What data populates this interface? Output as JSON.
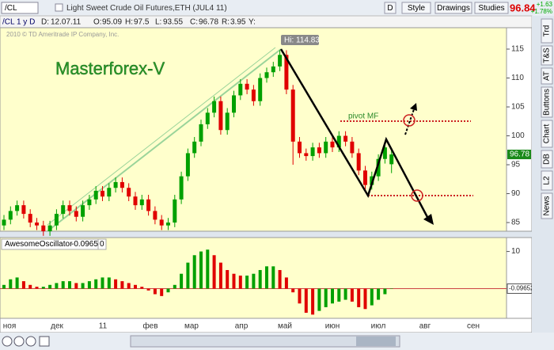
{
  "toolbar": {
    "symbol": "/CL",
    "description": "Light Sweet Crude Oil Futures,ETH (JUL4 11)",
    "buttons": [
      "D",
      "Style",
      "Drawings",
      "Studies"
    ],
    "last": "96.84",
    "change": "+1.63",
    "change_pct": "+1.78%"
  },
  "info_bar": {
    "symbol": "/CL 1 y D",
    "date_label": "D:",
    "date": "12.07.11",
    "open_label": "O:",
    "high_label": "H:",
    "low_label": "L:",
    "close_label": "C:",
    "range_label": "R:",
    "range": 3.95,
    "y_label": "Y:"
  },
  "copyright": "2010 © TD Ameritrade IP Company, Inc.",
  "watermark": "Masterforex-V",
  "pivot_label": "pivot MF",
  "hi_label": "Hi:",
  "sidebar": [
    "Trd",
    "T&S",
    "AT",
    "Buttons",
    "Chart",
    "DB",
    "L2",
    "News"
  ],
  "x_labels": [
    "ноя",
    "дек",
    "11",
    "фев",
    "мар",
    "апр",
    "май",
    "июн",
    "июл",
    "авг",
    "сен"
  ],
  "chart_data": [
    {
      "type": "candlestick",
      "up_color": "#00a000",
      "down_color": "#e00000",
      "ylim": [
        83.5,
        118.7
      ],
      "yticks": [
        85,
        90,
        95,
        100,
        105,
        110,
        115
      ],
      "candles": [
        [
          84.5,
          86.3,
          83.7,
          85.5
        ],
        [
          85.5,
          87.8,
          84.7,
          87
        ],
        [
          87,
          88.8,
          86.2,
          88
        ],
        [
          88,
          88.8,
          85.7,
          86.5
        ],
        [
          86.5,
          87.3,
          84.2,
          85
        ],
        [
          85,
          85.8,
          83.7,
          84.5
        ],
        [
          84.5,
          85.3,
          82.7,
          83.5
        ],
        [
          83.5,
          85.3,
          82.7,
          84.5
        ],
        [
          84.5,
          87.3,
          83.7,
          86.5
        ],
        [
          86.5,
          88.8,
          85.7,
          88
        ],
        [
          88,
          88.8,
          86.2,
          87
        ],
        [
          87,
          87.8,
          85.2,
          86
        ],
        [
          86,
          88.8,
          85.2,
          88
        ],
        [
          88,
          89.8,
          87.2,
          89
        ],
        [
          89,
          91.3,
          88.2,
          90.5
        ],
        [
          90.5,
          91.3,
          88.7,
          89.5
        ],
        [
          89.5,
          91.8,
          88.7,
          91
        ],
        [
          91,
          92.8,
          90.2,
          92
        ],
        [
          92,
          92.8,
          90.2,
          91
        ],
        [
          91,
          91.8,
          88.7,
          89.5
        ],
        [
          89.5,
          90.3,
          87.2,
          88
        ],
        [
          88,
          89.8,
          87.2,
          89
        ],
        [
          89,
          89.8,
          86.2,
          87
        ],
        [
          87,
          87.8,
          84.7,
          85.5
        ],
        [
          85.5,
          86.3,
          83.7,
          84.5
        ],
        [
          84.5,
          85.8,
          83.7,
          85
        ],
        [
          85,
          89.8,
          84.2,
          89
        ],
        [
          89,
          93.8,
          88.2,
          93
        ],
        [
          93,
          97.8,
          92.2,
          97
        ],
        [
          97,
          99.8,
          96.2,
          99
        ],
        [
          99,
          102.8,
          98.2,
          102
        ],
        [
          102,
          104.8,
          101.2,
          104
        ],
        [
          104,
          106.8,
          103.2,
          106
        ],
        [
          106,
          106.8,
          100.2,
          101
        ],
        [
          101,
          104.8,
          100.2,
          104
        ],
        [
          104,
          107.8,
          103.2,
          107
        ],
        [
          107,
          109.8,
          106.2,
          109
        ],
        [
          109,
          109.8,
          107.2,
          108
        ],
        [
          108,
          108.8,
          105.2,
          106
        ],
        [
          106,
          110.8,
          105.2,
          110
        ],
        [
          110,
          111.8,
          109.2,
          111
        ],
        [
          111,
          112.8,
          110.2,
          112
        ],
        [
          112,
          114.83,
          111.2,
          114
        ],
        [
          114,
          114.8,
          107.2,
          108
        ],
        [
          108,
          108.8,
          95,
          99
        ],
        [
          99,
          99.8,
          96.2,
          97
        ],
        [
          97,
          97.8,
          95.7,
          96.5
        ],
        [
          96.5,
          98.8,
          95.7,
          98
        ],
        [
          98,
          98.8,
          96.2,
          97
        ],
        [
          97,
          99.8,
          96.2,
          99
        ],
        [
          99,
          99.8,
          97.2,
          98
        ],
        [
          98,
          100.8,
          97.2,
          100
        ],
        [
          100,
          100.8,
          98.2,
          99
        ],
        [
          99,
          99.8,
          96.2,
          97
        ],
        [
          97,
          97.8,
          93.2,
          94
        ],
        [
          94,
          94.8,
          90.7,
          91.5
        ],
        [
          91.5,
          93.8,
          90.7,
          93
        ],
        [
          93,
          96.8,
          92.2,
          96
        ],
        [
          96,
          98.8,
          95.2,
          98
        ],
        [
          95.09,
          97.5,
          93.55,
          96.78
        ]
      ]
    },
    {
      "type": "bar",
      "name": "AwesomeOscillator",
      "current": "-0.0965",
      "param": "0",
      "marker": "-0.09652",
      "up_color": "#00a000",
      "down_color": "#e00000",
      "ylim": [
        -8,
        13.75
      ],
      "yticks": [
        10
      ],
      "values": [
        1,
        2.5,
        3,
        2,
        1,
        0.5,
        0.5,
        1,
        1.5,
        2,
        2,
        1.5,
        1.5,
        2,
        2.5,
        3,
        3,
        2.5,
        2,
        1.5,
        1,
        0.5,
        -0.5,
        -1.5,
        -2,
        -1,
        1,
        4,
        7,
        9,
        10,
        10.5,
        9,
        7,
        5,
        4,
        3.5,
        3.5,
        4,
        5,
        6,
        6,
        5,
        3,
        -1,
        -4,
        -6.5,
        -7,
        -6,
        -5,
        -4,
        -3.5,
        -3,
        -3.5,
        -5,
        -5.5,
        -4.5,
        -3,
        -1.5,
        -0.09652
      ]
    }
  ]
}
